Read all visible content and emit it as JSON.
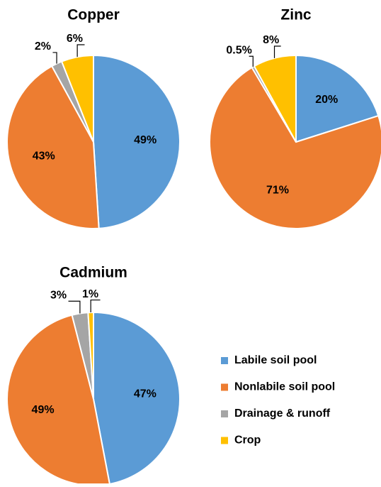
{
  "chart_data": [
    {
      "type": "pie",
      "title": "Copper",
      "values": [
        49,
        43,
        2,
        6
      ],
      "value_labels": [
        "49%",
        "43%",
        "2%",
        "6%"
      ]
    },
    {
      "type": "pie",
      "title": "Zinc",
      "values": [
        20,
        71,
        0.5,
        8
      ],
      "value_labels": [
        "20%",
        "71%",
        "0.5%",
        "8%"
      ]
    },
    {
      "type": "pie",
      "title": "Cadmium",
      "values": [
        47,
        49,
        3,
        1
      ],
      "value_labels": [
        "47%",
        "49%",
        "3%",
        "1%"
      ]
    }
  ],
  "legend": {
    "categories": [
      "Labile soil pool",
      "Nonlabile soil pool",
      "Drainage & runoff",
      "Crop"
    ],
    "colors": [
      "#5b9bd5",
      "#ed7d31",
      "#a5a5a5",
      "#ffc000"
    ]
  }
}
